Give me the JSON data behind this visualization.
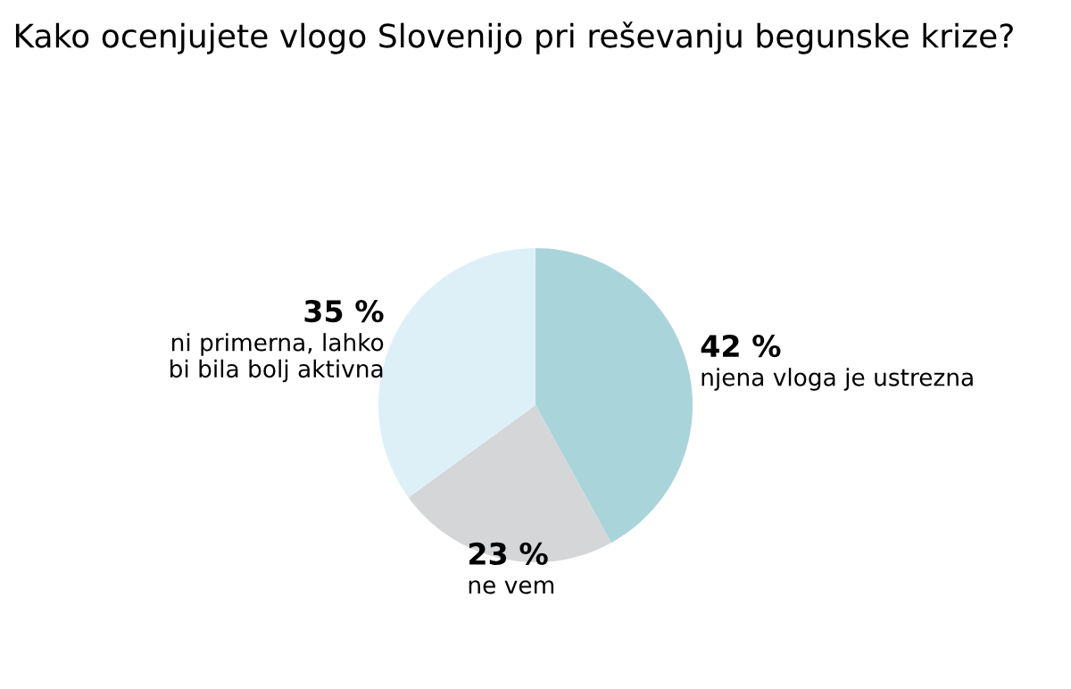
{
  "chart_data": {
    "type": "pie",
    "title": "Kako ocenjujete vlogo Slovenijo pri reševanju begunske krize?",
    "categories": [
      "njena vloga je ustrezna",
      "ne vem",
      "ni primerna, lahko\nbi bila bolj aktivna"
    ],
    "values": [
      42,
      23,
      35
    ],
    "value_labels": [
      "42 %",
      "23 %",
      "35 %"
    ],
    "colors": [
      "#a9d5da",
      "#d5d6d8",
      "#ddf0f8"
    ]
  }
}
